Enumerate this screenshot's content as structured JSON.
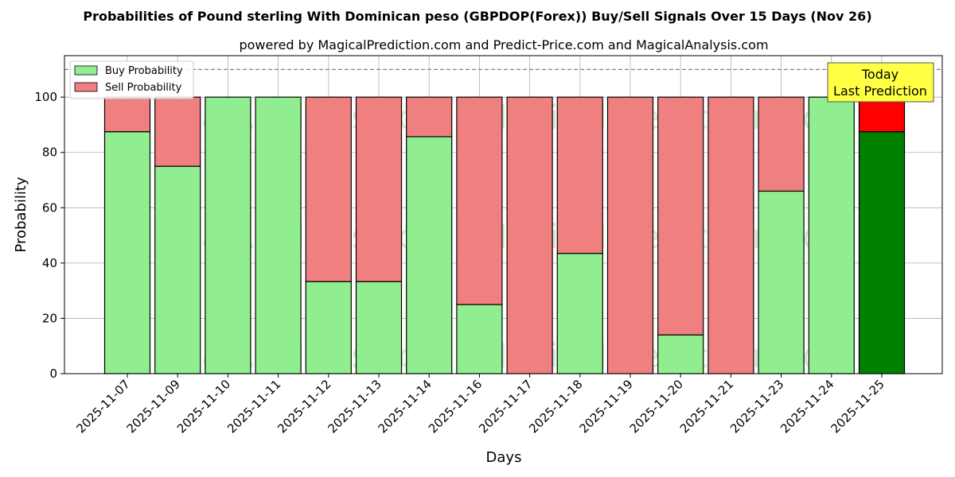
{
  "chart_data": {
    "type": "bar",
    "stacked": true,
    "title": "Probabilities of Pound sterling With Dominican peso (GBPDOP(Forex)) Buy/Sell Signals Over 15 Days (Nov 26)",
    "subtitle": "powered by MagicalPrediction.com and Predict-Price.com and MagicalAnalysis.com",
    "xlabel": "Days",
    "ylabel": "Probability",
    "ylim": [
      0,
      115
    ],
    "yticks": [
      0,
      20,
      40,
      60,
      80,
      100
    ],
    "reference_line": 110,
    "grid": true,
    "legend_placement": "top-left",
    "categories": [
      "2025-11-07",
      "2025-11-09",
      "2025-11-10",
      "2025-11-11",
      "2025-11-12",
      "2025-11-13",
      "2025-11-14",
      "2025-11-16",
      "2025-11-17",
      "2025-11-18",
      "2025-11-19",
      "2025-11-20",
      "2025-11-21",
      "2025-11-23",
      "2025-11-24",
      "2025-11-25"
    ],
    "series": [
      {
        "name": "Buy Probability",
        "color": "#90ee90",
        "highlight_color": "#008000",
        "values": [
          87.5,
          75,
          100,
          100,
          33.3,
          33.3,
          85.7,
          25,
          0,
          43.5,
          0,
          14,
          0,
          66,
          100,
          87.5
        ]
      },
      {
        "name": "Sell Probability",
        "color": "#f08080",
        "highlight_color": "#ff0000",
        "values": [
          12.5,
          25,
          0,
          0,
          66.7,
          66.7,
          14.3,
          75,
          100,
          56.5,
          100,
          86,
          100,
          34,
          0,
          12.5
        ]
      }
    ],
    "highlight_index": 15,
    "annotation": {
      "line1": "Today",
      "line2": "Last Prediction",
      "color": "#ffff44"
    },
    "watermarks": [
      "MagicalAnalysis.com",
      "MagicalPrediction.com"
    ]
  }
}
